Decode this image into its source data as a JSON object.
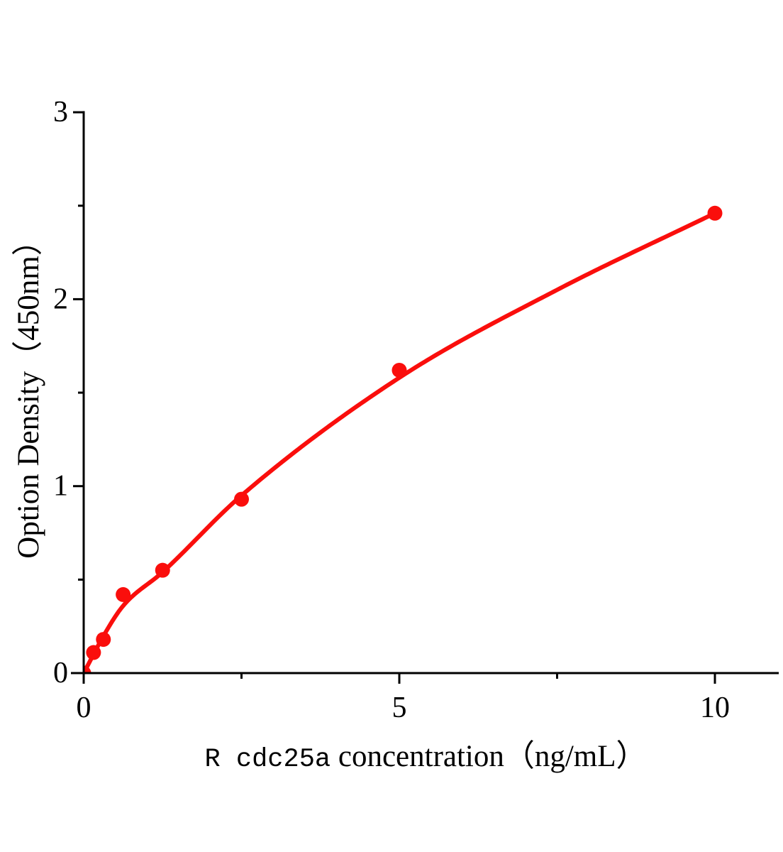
{
  "chart_data": {
    "type": "scatter",
    "title": "",
    "xlabel": "R cdc25a concentration（ng/mL）",
    "xlabel_prefix": "R cdc25a",
    "xlabel_rest": " concentration（ng/mL）",
    "ylabel": "Option Density（450nm）",
    "x": [
      0,
      0.156,
      0.312,
      0.625,
      1.25,
      2.5,
      5,
      10
    ],
    "y": [
      0,
      0.11,
      0.18,
      0.42,
      0.55,
      0.93,
      1.62,
      2.46
    ],
    "curve_anchors": [
      [
        0,
        0
      ],
      [
        0.35,
        0.22
      ],
      [
        0.625,
        0.36
      ],
      [
        1.25,
        0.54
      ],
      [
        2.5,
        0.95
      ],
      [
        5,
        1.58
      ],
      [
        7.5,
        2.05
      ],
      [
        10,
        2.46
      ]
    ],
    "xlim": [
      0,
      11
    ],
    "ylim": [
      0,
      3
    ],
    "x_ticks": {
      "major": [
        0,
        5,
        10
      ],
      "labels": [
        "0",
        "5",
        "10"
      ],
      "minor": [
        2.5,
        7.5
      ]
    },
    "y_ticks": {
      "major": [
        0,
        1,
        2,
        3
      ],
      "labels": [
        "0",
        "1",
        "2",
        "3"
      ],
      "minor": [
        0.5,
        1.5,
        2.5
      ]
    },
    "grid": false,
    "legend": null,
    "colors": {
      "series": "#fa0e0c",
      "axis": "#000000",
      "text": "#000000",
      "background": "#ffffff"
    }
  }
}
